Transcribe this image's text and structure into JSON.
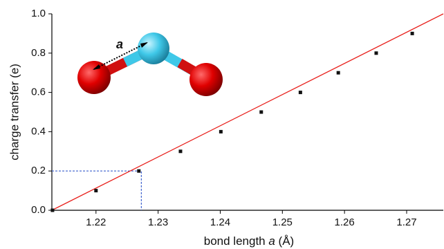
{
  "chart_data": {
    "type": "scatter",
    "xlabel": [
      "bond length ",
      "a",
      " (Å)"
    ],
    "ylabel": "charge transfer (e)",
    "annotation": "a",
    "x": [
      1.213,
      1.22,
      1.2269,
      1.2336,
      1.2401,
      1.2466,
      1.2529,
      1.259,
      1.2651,
      1.2709
    ],
    "values": [
      0.0,
      0.1,
      0.2,
      0.3,
      0.4,
      0.5,
      0.6,
      0.7,
      0.8,
      0.9
    ],
    "color": "#111111",
    "fit_line": {
      "x": [
        1.2129,
        1.2759
      ],
      "values": [
        0.0,
        1.0
      ],
      "color": "#e8201c"
    },
    "guide": {
      "x": 1.2273,
      "y": 0.2,
      "color": "#3a5fcd"
    },
    "xlim": [
      1.2129,
      1.2759
    ],
    "ylim": [
      0,
      1
    ],
    "xticks": [
      1.22,
      1.23,
      1.24,
      1.25,
      1.26,
      1.27
    ],
    "yticks": [
      {
        "value": 0,
        "label": "0.0"
      },
      0.2,
      0.4,
      0.6,
      0.8,
      {
        "value": 1,
        "label": "1.0"
      }
    ]
  }
}
